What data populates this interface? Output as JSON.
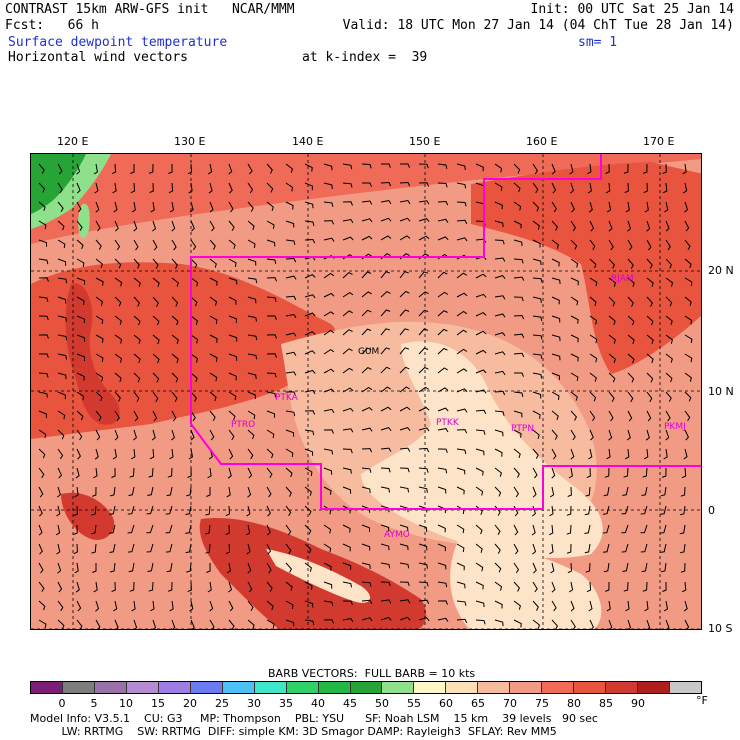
{
  "header": {
    "line1_left": "CONTRAST 15km ARW-GFS init   NCAR/MMM",
    "line1_right": "Init: 00 UTC Sat 25 Jan 14",
    "line2_left": "Fcst:   66 h",
    "line2_right": "Valid: 18 UTC Mon 27 Jan 14 (04 ChT Tue 28 Jan 14)",
    "field_name": "Surface dewpoint temperature",
    "smoothing": "sm= 1",
    "vector_field": "Horizontal wind vectors",
    "level": "at k-index =  39"
  },
  "map": {
    "lon_labels": [
      "120 E",
      "130 E",
      "140 E",
      "150 E",
      "160 E",
      "170 E"
    ],
    "lat_labels": [
      "20 N",
      "10 N",
      "0",
      "10 S"
    ],
    "stations": [
      "GUM",
      "PTKA",
      "PTRO",
      "PTKK",
      "PTPN",
      "PKMJ",
      "AYMO",
      "RJAM"
    ],
    "colors": {
      "base": "#f29b84",
      "warm": "#e8543d",
      "cool": "#f7bca0",
      "coolest": "#fde4c8",
      "land": "#cf2a2a",
      "green": "#2fb04a",
      "boundary": "#ff00dd"
    }
  },
  "barb_caption": "BARB VECTORS:  FULL BARB = 10 kts",
  "colorbar": {
    "labels": [
      "0",
      "5",
      "10",
      "15",
      "20",
      "25",
      "30",
      "35",
      "40",
      "45",
      "50",
      "55",
      "60",
      "65",
      "70",
      "75",
      "80",
      "85",
      "90"
    ],
    "unit": "°F",
    "colors": [
      "#7a1e7a",
      "#7d7d7d",
      "#9a72a8",
      "#b48ad0",
      "#9c7ee6",
      "#6b7cf0",
      "#4fc0f5",
      "#3fe6c8",
      "#2ed16a",
      "#23b845",
      "#27a436",
      "#8fe08a",
      "#fef7c8",
      "#fde0b8",
      "#f7bca0",
      "#f29b84",
      "#ef6a57",
      "#e8543d",
      "#d33a2f",
      "#b01e1e",
      "#c8c8c8"
    ]
  },
  "footer": {
    "line1": "Model Info: V3.5.1    CU: G3     MP: Thompson    PBL: YSU      SF: Noah LSM    15 km    39 levels   90 sec",
    "line2": "         LW: RRTMG    SW: RRTMG  DIFF: simple KM: 3D Smagor DAMP: Rayleigh3  SFLAY: Rev MM5"
  }
}
